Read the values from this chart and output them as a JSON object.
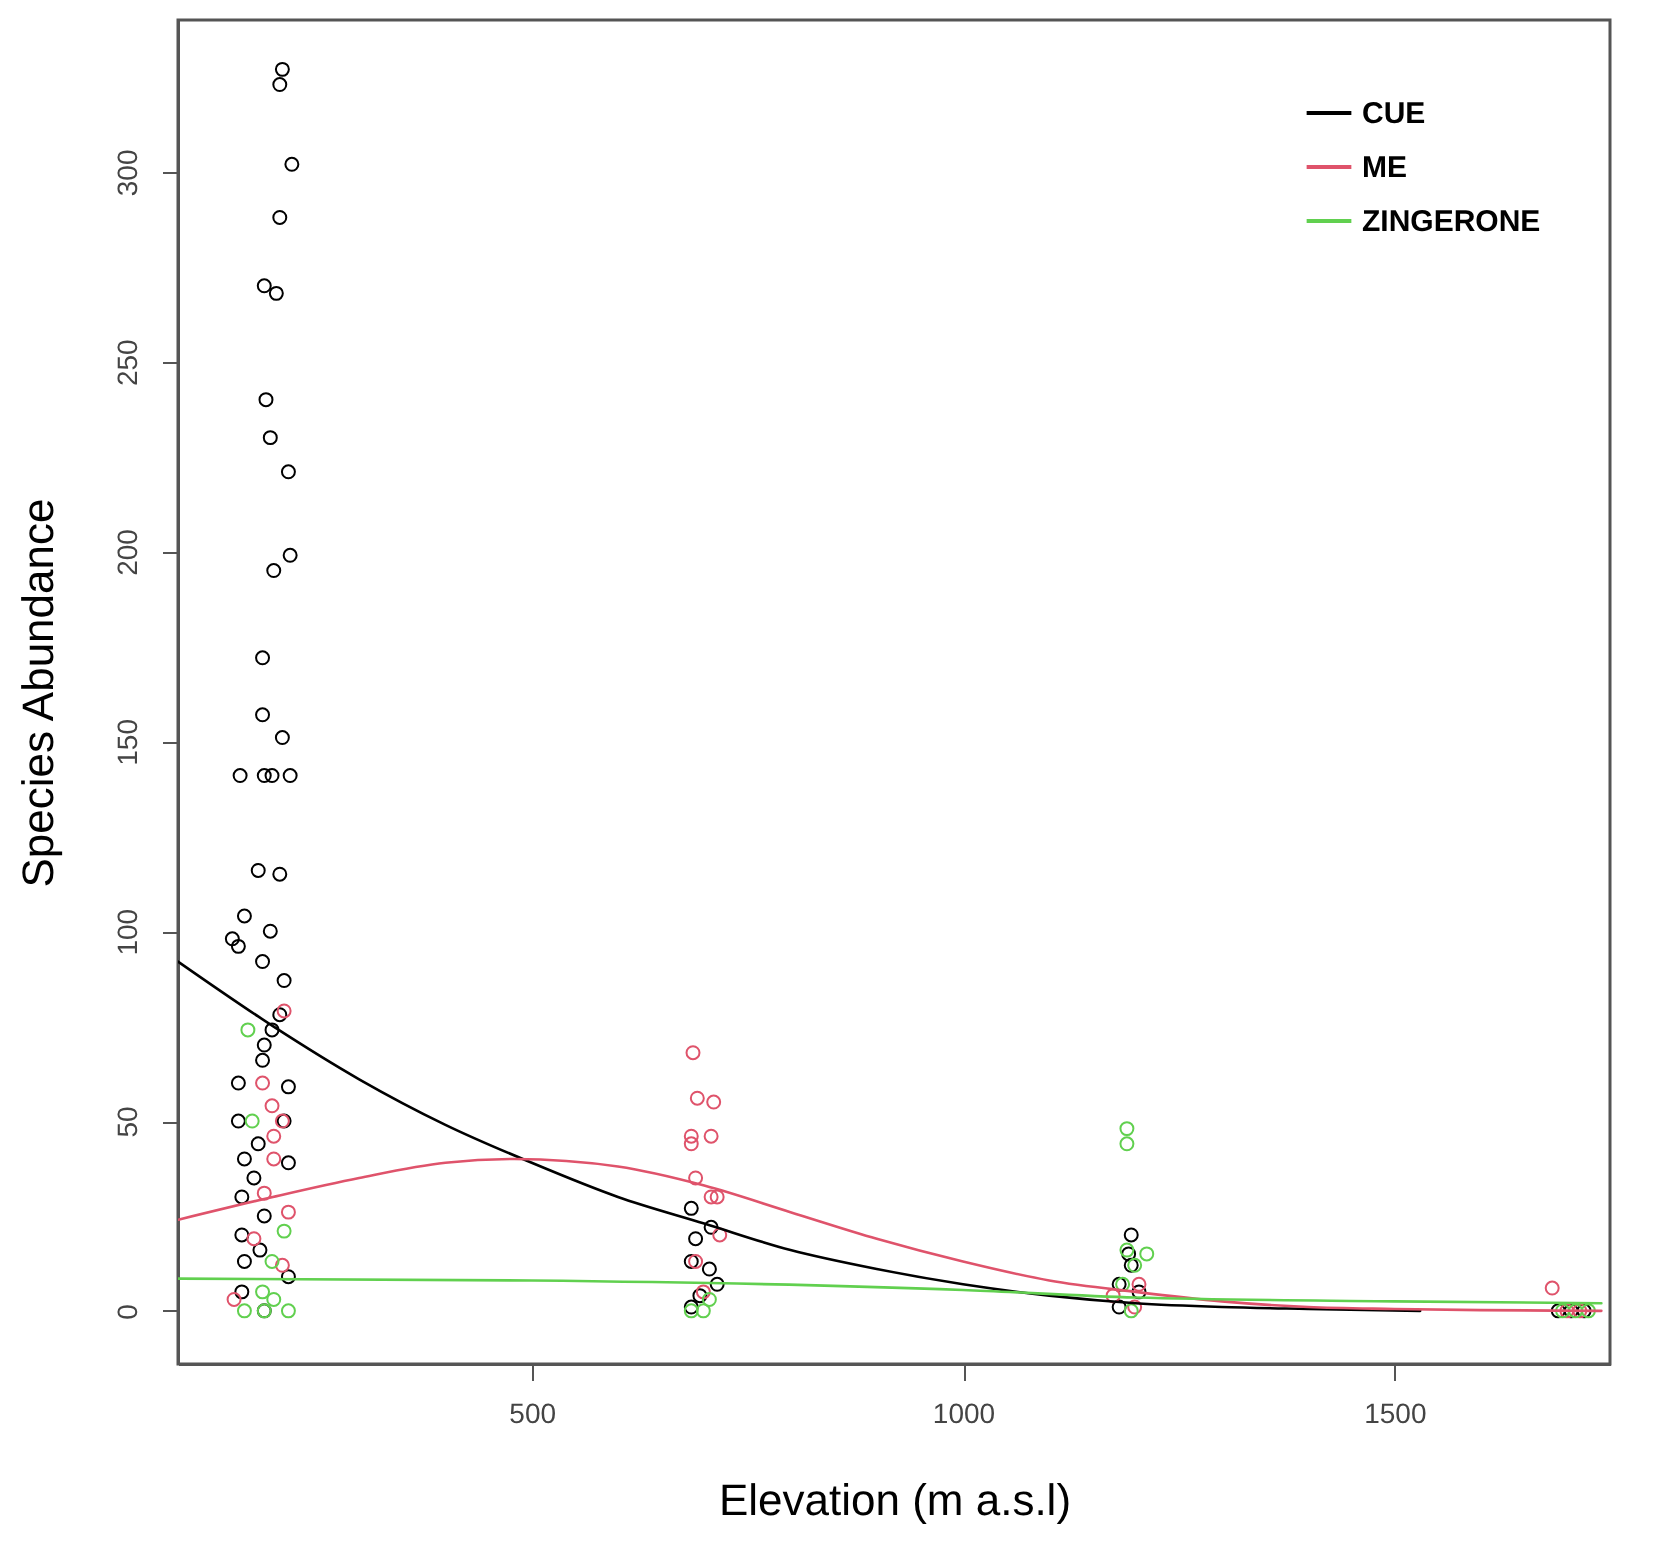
{
  "chart_data": {
    "type": "scatter",
    "xlabel": "Elevation (m a.s.l)",
    "ylabel": "Species Abundance",
    "xlim": [
      90,
      1750
    ],
    "ylim": [
      -14,
      340
    ],
    "xticks": [
      500,
      1000,
      1500
    ],
    "yticks": [
      0,
      50,
      100,
      150,
      200,
      250,
      300
    ],
    "grid": false,
    "legend": "top right",
    "marker": "circle",
    "series": [
      {
        "color": "#000000",
        "x": [
          211,
          208,
          222,
          208,
          190,
          204,
          192,
          197,
          218,
          220,
          201,
          188,
          188,
          211,
          162,
          190,
          199,
          220,
          183,
          208,
          167,
          153,
          160,
          197,
          188,
          213,
          208,
          199,
          190,
          188,
          160,
          218,
          160,
          213,
          183,
          167,
          218,
          178,
          164,
          190,
          164,
          185,
          167,
          218,
          164,
          190,
          685,
          708,
          690,
          685,
          706,
          715,
          695,
          685,
          1195,
          1192,
          1195,
          1181,
          1204,
          1181,
          1690,
          1705,
          1720
        ],
        "values": [
          327,
          323,
          302,
          288,
          270,
          268,
          240,
          230,
          221,
          199,
          195,
          172,
          157,
          151,
          141,
          141,
          141,
          141,
          116,
          115,
          104,
          98,
          96,
          100,
          92,
          87,
          78,
          74,
          70,
          66,
          60,
          59,
          50,
          50,
          44,
          40,
          39,
          35,
          30,
          25,
          20,
          16,
          13,
          9,
          5,
          0,
          27,
          22,
          19,
          13,
          11,
          7,
          4,
          1,
          20,
          15,
          12,
          7,
          5,
          1,
          0,
          0,
          0
        ]
      },
      {
        "color": "#df536b",
        "x": [
          213,
          188,
          199,
          211,
          201,
          201,
          190,
          218,
          178,
          155,
          211,
          687,
          692,
          711,
          685,
          685,
          708,
          690,
          708,
          715,
          718,
          690,
          699,
          1204,
          1174,
          1199,
          1683,
          1700,
          1715
        ],
        "values": [
          79,
          60,
          54,
          50,
          46,
          40,
          31,
          26,
          19,
          3,
          12,
          68,
          56,
          55,
          46,
          44,
          46,
          35,
          30,
          30,
          20,
          13,
          5,
          7,
          4,
          1,
          6,
          0,
          0
        ]
      },
      {
        "color": "#61d04f",
        "x": [
          171,
          176,
          213,
          199,
          188,
          167,
          190,
          218,
          201,
          685,
          699,
          706,
          1190,
          1190,
          1190,
          1213,
          1199,
          1185,
          1195,
          1695,
          1710,
          1725
        ],
        "values": [
          74,
          50,
          21,
          13,
          5,
          0,
          0,
          0,
          3,
          0,
          0,
          3,
          48,
          44,
          16,
          15,
          12,
          7,
          0,
          0,
          0,
          0
        ]
      },
      {
        "type": "line",
        "marker": "none",
        "name": "CUE",
        "color": "#000000",
        "x": [
          90,
          200,
          300,
          400,
          500,
          600,
          700,
          800,
          900,
          1000,
          1100,
          1200,
          1300,
          1400,
          1530
        ],
        "values": [
          92,
          75,
          61,
          49,
          39,
          30,
          23,
          16,
          11,
          7,
          4,
          2,
          1,
          0.5,
          0
        ]
      },
      {
        "type": "line",
        "marker": "none",
        "name": "ME",
        "color": "#df536b",
        "x": [
          90,
          200,
          300,
          400,
          480,
          600,
          700,
          800,
          900,
          1000,
          1100,
          1200,
          1300,
          1400,
          1500,
          1600,
          1740
        ],
        "values": [
          24,
          30,
          35,
          39,
          40,
          38,
          33,
          26,
          19,
          13,
          8,
          5,
          2.5,
          1,
          0.5,
          0.2,
          0
        ]
      },
      {
        "type": "line",
        "marker": "none",
        "name": "ZINGERONE",
        "color": "#61d04f",
        "x": [
          90,
          500,
          1000,
          1200,
          1500,
          1740
        ],
        "values": [
          8.5,
          8,
          5.5,
          3.5,
          2.5,
          2
        ]
      }
    ]
  }
}
